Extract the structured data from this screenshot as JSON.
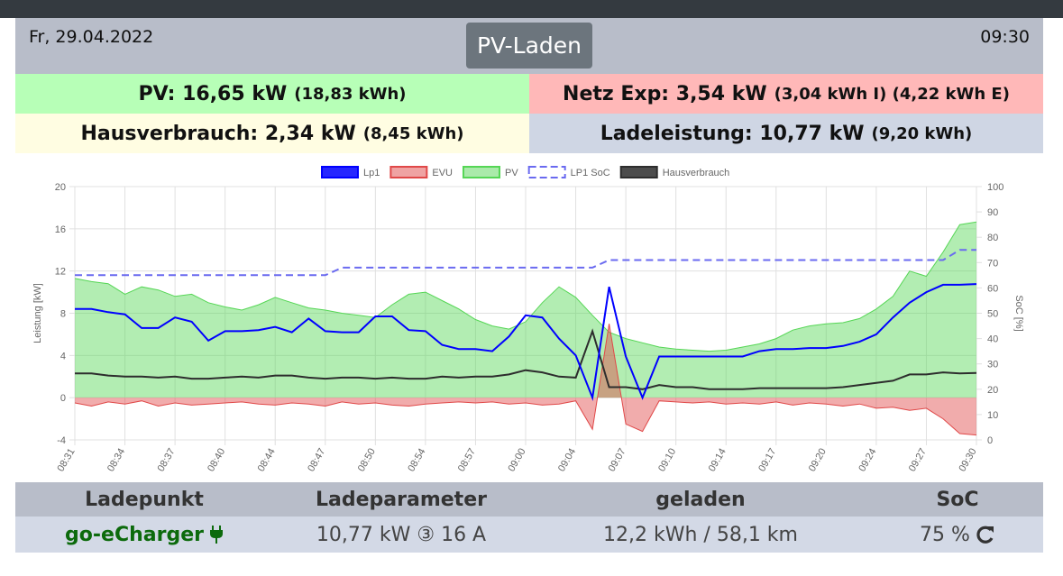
{
  "header": {
    "date": "Fr, 29.04.2022",
    "mode": "PV-Laden",
    "time": "09:30"
  },
  "tiles": {
    "pv": {
      "main": "PV: 16,65 kW",
      "sub": "(18,83 kWh)"
    },
    "grid": {
      "main": "Netz Exp: 3,54 kW",
      "sub": "(3,04 kWh I) (4,22 kWh E)"
    },
    "house": {
      "main": "Hausverbrauch: 2,34 kW",
      "sub": "(8,45 kWh)"
    },
    "charge": {
      "main": "Ladeleistung: 10,77 kW",
      "sub": "(9,20 kWh)"
    }
  },
  "chart_data": {
    "type": "line",
    "y_label": "Leistung [kW]",
    "y2_label": "SoC [%]",
    "categories": [
      "08:31",
      null,
      null,
      "08:34",
      null,
      null,
      "08:37",
      null,
      null,
      "08:40",
      null,
      null,
      "08:44",
      null,
      null,
      "08:47",
      null,
      null,
      "08:50",
      null,
      null,
      "08:54",
      null,
      null,
      "08:57",
      null,
      null,
      "09:00",
      null,
      null,
      "09:04",
      null,
      null,
      "09:07",
      null,
      null,
      "09:10",
      null,
      null,
      "09:14",
      null,
      null,
      "09:17",
      null,
      null,
      "09:20",
      null,
      null,
      "09:24",
      null,
      null,
      "09:27",
      null,
      null,
      "09:30"
    ],
    "ylim": [
      -4,
      20
    ],
    "yticks": [
      -4,
      0,
      4,
      8,
      12,
      16,
      20
    ],
    "y2lim": [
      0,
      100
    ],
    "y2ticks": [
      0,
      10,
      20,
      30,
      40,
      50,
      60,
      70,
      80,
      90,
      100
    ],
    "grid": true,
    "series": [
      {
        "name": "Lp1",
        "color": "#0000ff",
        "fill": false,
        "dashed": false,
        "values": [
          8.4,
          8.4,
          8.1,
          7.9,
          6.6,
          6.6,
          7.6,
          7.2,
          5.4,
          6.3,
          6.3,
          6.4,
          6.7,
          6.2,
          7.5,
          6.3,
          6.2,
          6.2,
          7.7,
          7.7,
          6.4,
          6.3,
          5.0,
          4.6,
          4.6,
          4.4,
          5.8,
          7.8,
          7.6,
          5.6,
          4.0,
          0.0,
          10.5,
          3.9,
          0.0,
          3.9,
          3.9,
          3.9,
          3.9,
          3.9,
          3.9,
          4.4,
          4.6,
          4.6,
          4.7,
          4.7,
          4.9,
          5.3,
          6.0,
          7.6,
          9.0,
          10.0,
          10.7,
          10.7,
          10.77
        ]
      },
      {
        "name": "EVU",
        "color": "#e04848",
        "fill": true,
        "dashed": false,
        "values": [
          -0.5,
          -0.8,
          -0.4,
          -0.6,
          -0.3,
          -0.8,
          -0.5,
          -0.7,
          -0.6,
          -0.5,
          -0.4,
          -0.6,
          -0.7,
          -0.5,
          -0.6,
          -0.8,
          -0.4,
          -0.6,
          -0.5,
          -0.7,
          -0.8,
          -0.6,
          -0.5,
          -0.4,
          -0.5,
          -0.4,
          -0.6,
          -0.5,
          -0.7,
          -0.6,
          -0.3,
          -3.0,
          7.0,
          -2.5,
          -3.2,
          -0.3,
          -0.4,
          -0.5,
          -0.4,
          -0.6,
          -0.5,
          -0.6,
          -0.4,
          -0.7,
          -0.5,
          -0.6,
          -0.8,
          -0.6,
          -1.0,
          -0.9,
          -1.2,
          -1.0,
          -2.0,
          -3.4,
          -3.54
        ]
      },
      {
        "name": "PV",
        "color": "#55d655",
        "fill": true,
        "dashed": false,
        "values": [
          11.3,
          11.0,
          10.8,
          9.8,
          10.5,
          10.2,
          9.6,
          9.8,
          9.0,
          8.6,
          8.3,
          8.8,
          9.5,
          9.0,
          8.5,
          8.3,
          8.0,
          7.8,
          7.6,
          8.8,
          9.8,
          10.0,
          9.2,
          8.4,
          7.4,
          6.8,
          6.5,
          7.2,
          9.0,
          10.5,
          9.5,
          7.8,
          6.2,
          5.6,
          5.2,
          4.8,
          4.6,
          4.5,
          4.4,
          4.5,
          4.8,
          5.1,
          5.6,
          6.4,
          6.8,
          7.0,
          7.1,
          7.5,
          8.4,
          9.6,
          12.0,
          11.5,
          13.8,
          16.4,
          16.65
        ]
      },
      {
        "name": "LP1 SoC",
        "color": "#6a6af0",
        "fill": false,
        "dashed": true,
        "axis": "y2",
        "values": [
          65,
          65,
          65,
          65,
          65,
          65,
          65,
          65,
          65,
          65,
          65,
          65,
          65,
          65,
          65,
          65,
          68,
          68,
          68,
          68,
          68,
          68,
          68,
          68,
          68,
          68,
          68,
          68,
          68,
          68,
          68,
          68,
          71,
          71,
          71,
          71,
          71,
          71,
          71,
          71,
          71,
          71,
          71,
          71,
          71,
          71,
          71,
          71,
          71,
          71,
          71,
          71,
          71,
          75,
          75
        ]
      },
      {
        "name": "Hausverbrauch",
        "color": "#2d2d2d",
        "fill": false,
        "dashed": false,
        "values": [
          2.3,
          2.3,
          2.1,
          2.0,
          2.0,
          1.9,
          2.0,
          1.8,
          1.8,
          1.9,
          2.0,
          1.9,
          2.1,
          2.1,
          1.9,
          1.8,
          1.9,
          1.9,
          1.8,
          1.9,
          1.8,
          1.8,
          2.0,
          1.9,
          2.0,
          2.0,
          2.2,
          2.6,
          2.4,
          2.0,
          1.9,
          6.3,
          1.0,
          1.0,
          0.8,
          1.2,
          1.0,
          1.0,
          0.8,
          0.8,
          0.8,
          0.9,
          0.9,
          0.9,
          0.9,
          0.9,
          1.0,
          1.2,
          1.4,
          1.6,
          2.2,
          2.2,
          2.4,
          2.3,
          2.34
        ]
      }
    ]
  },
  "table": {
    "headers": [
      "Ladepunkt",
      "Ladeparameter",
      "geladen",
      "SoC"
    ],
    "rows": [
      [
        "go-eCharger",
        "10,77 kW ③ 16 A",
        "12,2 kWh / 58,1 km",
        "75 %"
      ]
    ]
  }
}
